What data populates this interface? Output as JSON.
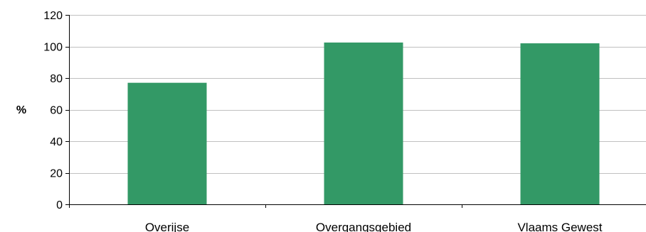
{
  "chart_data": {
    "type": "bar",
    "categories": [
      "Overijse",
      "Overgangsgebied",
      "Vlaams Gewest"
    ],
    "values": [
      77,
      102.5,
      102
    ],
    "title": "",
    "xlabel": "",
    "ylabel": "%",
    "ylim": [
      0,
      120
    ],
    "yticks": [
      0,
      20,
      40,
      60,
      80,
      100,
      120
    ],
    "grid": true,
    "legend": "none",
    "bar_color": "#339966",
    "grid_color": "#c0c0c0",
    "axis_color": "#000000"
  }
}
